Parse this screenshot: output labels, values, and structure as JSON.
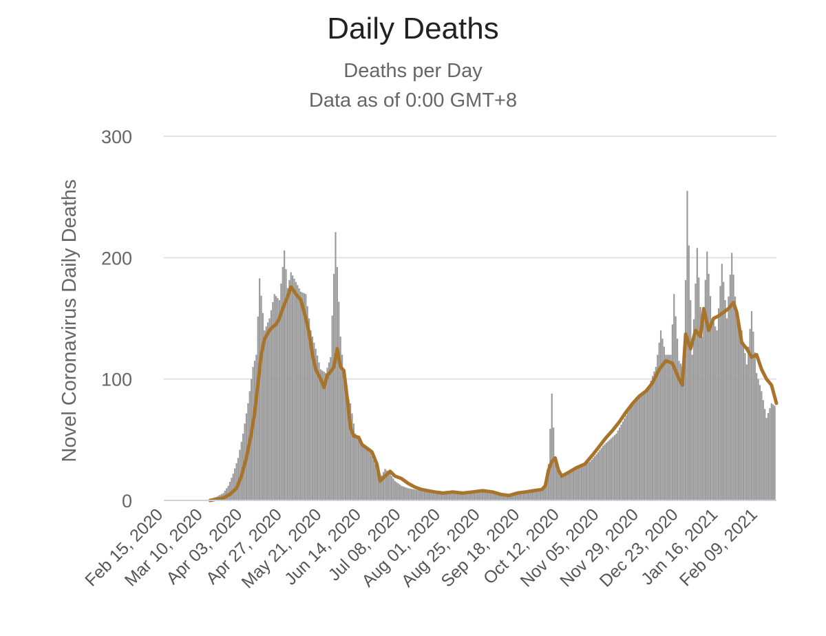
{
  "chart_data": {
    "type": "bar",
    "title": "Daily Deaths",
    "subtitle_lines": [
      "Deaths per Day",
      "Data as of 0:00 GMT+8"
    ],
    "ylabel": "Novel Coronavirus Daily Deaths",
    "xlabel": "",
    "ylim": [
      0,
      300
    ],
    "yticks": [
      0,
      100,
      200,
      300
    ],
    "grid": true,
    "x_start": "2020-02-15",
    "x_end": "2021-02-20",
    "xticks": [
      "Feb 15, 2020",
      "Mar 10, 2020",
      "Apr 03, 2020",
      "Apr 27, 2020",
      "May 21, 2020",
      "Jun 14, 2020",
      "Jul 08, 2020",
      "Aug 01, 2020",
      "Aug 25, 2020",
      "Sep 18, 2020",
      "Oct 12, 2020",
      "Nov 05, 2020",
      "Nov 29, 2020",
      "Dec 23, 2020",
      "Jan 16, 2021",
      "Feb 09, 2021"
    ],
    "series": [
      {
        "type": "bar",
        "color": "#9b9b9b",
        "points": [
          [
            "2020-03-14",
            1
          ],
          [
            "2020-03-18",
            3
          ],
          [
            "2020-03-22",
            6
          ],
          [
            "2020-03-25",
            12
          ],
          [
            "2020-03-28",
            22
          ],
          [
            "2020-03-31",
            35
          ],
          [
            "2020-04-03",
            55
          ],
          [
            "2020-04-06",
            80
          ],
          [
            "2020-04-09",
            110
          ],
          [
            "2020-04-11",
            120
          ],
          [
            "2020-04-13",
            183
          ],
          [
            "2020-04-16",
            140
          ],
          [
            "2020-04-19",
            150
          ],
          [
            "2020-04-22",
            170
          ],
          [
            "2020-04-25",
            165
          ],
          [
            "2020-04-28",
            206
          ],
          [
            "2020-04-30",
            175
          ],
          [
            "2020-05-02",
            188
          ],
          [
            "2020-05-05",
            180
          ],
          [
            "2020-05-08",
            172
          ],
          [
            "2020-05-11",
            170
          ],
          [
            "2020-05-14",
            140
          ],
          [
            "2020-05-17",
            125
          ],
          [
            "2020-05-20",
            108
          ],
          [
            "2020-05-23",
            105
          ],
          [
            "2020-05-26",
            118
          ],
          [
            "2020-05-29",
            221
          ],
          [
            "2020-06-01",
            135
          ],
          [
            "2020-06-04",
            90
          ],
          [
            "2020-06-07",
            80
          ],
          [
            "2020-06-10",
            55
          ],
          [
            "2020-06-13",
            50
          ],
          [
            "2020-06-16",
            44
          ],
          [
            "2020-06-19",
            40
          ],
          [
            "2020-06-22",
            30
          ],
          [
            "2020-06-25",
            18
          ],
          [
            "2020-06-28",
            26
          ],
          [
            "2020-07-01",
            22
          ],
          [
            "2020-07-04",
            16
          ],
          [
            "2020-07-08",
            12
          ],
          [
            "2020-07-12",
            10
          ],
          [
            "2020-07-16",
            9
          ],
          [
            "2020-07-20",
            8
          ],
          [
            "2020-07-25",
            7
          ],
          [
            "2020-07-30",
            8
          ],
          [
            "2020-08-05",
            6
          ],
          [
            "2020-08-10",
            7
          ],
          [
            "2020-08-15",
            6
          ],
          [
            "2020-08-20",
            8
          ],
          [
            "2020-08-25",
            7
          ],
          [
            "2020-08-30",
            6
          ],
          [
            "2020-09-04",
            5
          ],
          [
            "2020-09-09",
            4
          ],
          [
            "2020-09-14",
            5
          ],
          [
            "2020-09-19",
            6
          ],
          [
            "2020-09-24",
            7
          ],
          [
            "2020-09-29",
            8
          ],
          [
            "2020-10-03",
            12
          ],
          [
            "2020-10-05",
            30
          ],
          [
            "2020-10-07",
            88
          ],
          [
            "2020-10-09",
            32
          ],
          [
            "2020-10-12",
            20
          ],
          [
            "2020-10-16",
            22
          ],
          [
            "2020-10-20",
            26
          ],
          [
            "2020-10-25",
            28
          ],
          [
            "2020-10-30",
            32
          ],
          [
            "2020-11-03",
            38
          ],
          [
            "2020-11-07",
            45
          ],
          [
            "2020-11-11",
            50
          ],
          [
            "2020-11-15",
            55
          ],
          [
            "2020-11-19",
            65
          ],
          [
            "2020-11-23",
            75
          ],
          [
            "2020-11-27",
            85
          ],
          [
            "2020-12-01",
            88
          ],
          [
            "2020-12-05",
            95
          ],
          [
            "2020-12-09",
            110
          ],
          [
            "2020-12-12",
            140
          ],
          [
            "2020-12-15",
            120
          ],
          [
            "2020-12-18",
            120
          ],
          [
            "2020-12-20",
            170
          ],
          [
            "2020-12-23",
            115
          ],
          [
            "2020-12-26",
            108
          ],
          [
            "2020-12-28",
            255
          ],
          [
            "2020-12-31",
            120
          ],
          [
            "2021-01-03",
            208
          ],
          [
            "2021-01-06",
            135
          ],
          [
            "2021-01-09",
            205
          ],
          [
            "2021-01-12",
            150
          ],
          [
            "2021-01-15",
            140
          ],
          [
            "2021-01-18",
            195
          ],
          [
            "2021-01-21",
            150
          ],
          [
            "2021-01-24",
            204
          ],
          [
            "2021-01-27",
            150
          ],
          [
            "2021-01-30",
            140
          ],
          [
            "2021-02-02",
            112
          ],
          [
            "2021-02-05",
            156
          ],
          [
            "2021-02-08",
            105
          ],
          [
            "2021-02-11",
            90
          ],
          [
            "2021-02-14",
            68
          ],
          [
            "2021-02-17",
            80
          ],
          [
            "2021-02-19",
            78
          ]
        ]
      },
      {
        "type": "line",
        "color": "#a8742b",
        "points": [
          [
            "2020-03-14",
            0
          ],
          [
            "2020-03-18",
            1
          ],
          [
            "2020-03-22",
            2
          ],
          [
            "2020-03-26",
            5
          ],
          [
            "2020-03-30",
            10
          ],
          [
            "2020-04-02",
            20
          ],
          [
            "2020-04-05",
            35
          ],
          [
            "2020-04-08",
            55
          ],
          [
            "2020-04-10",
            72
          ],
          [
            "2020-04-12",
            96
          ],
          [
            "2020-04-14",
            120
          ],
          [
            "2020-04-16",
            133
          ],
          [
            "2020-04-19",
            140
          ],
          [
            "2020-04-21",
            143
          ],
          [
            "2020-04-23",
            145
          ],
          [
            "2020-04-25",
            150
          ],
          [
            "2020-04-27",
            158
          ],
          [
            "2020-04-30",
            168
          ],
          [
            "2020-05-02",
            176
          ],
          [
            "2020-05-05",
            170
          ],
          [
            "2020-05-08",
            165
          ],
          [
            "2020-05-11",
            150
          ],
          [
            "2020-05-13",
            138
          ],
          [
            "2020-05-15",
            120
          ],
          [
            "2020-05-17",
            108
          ],
          [
            "2020-05-20",
            100
          ],
          [
            "2020-05-22",
            93
          ],
          [
            "2020-05-24",
            103
          ],
          [
            "2020-05-26",
            106
          ],
          [
            "2020-05-28",
            110
          ],
          [
            "2020-05-30",
            125
          ],
          [
            "2020-06-01",
            110
          ],
          [
            "2020-06-03",
            107
          ],
          [
            "2020-06-05",
            85
          ],
          [
            "2020-06-07",
            60
          ],
          [
            "2020-06-09",
            53
          ],
          [
            "2020-06-12",
            52
          ],
          [
            "2020-06-14",
            46
          ],
          [
            "2020-06-17",
            43
          ],
          [
            "2020-06-20",
            40
          ],
          [
            "2020-06-23",
            30
          ],
          [
            "2020-06-25",
            16
          ],
          [
            "2020-06-28",
            20
          ],
          [
            "2020-07-01",
            24
          ],
          [
            "2020-07-04",
            20
          ],
          [
            "2020-07-08",
            18
          ],
          [
            "2020-07-12",
            14
          ],
          [
            "2020-07-16",
            11
          ],
          [
            "2020-07-20",
            9
          ],
          [
            "2020-07-24",
            8
          ],
          [
            "2020-07-28",
            7
          ],
          [
            "2020-08-02",
            6
          ],
          [
            "2020-08-08",
            7
          ],
          [
            "2020-08-14",
            6
          ],
          [
            "2020-08-20",
            7
          ],
          [
            "2020-08-26",
            8
          ],
          [
            "2020-09-01",
            7
          ],
          [
            "2020-09-06",
            5
          ],
          [
            "2020-09-11",
            4
          ],
          [
            "2020-09-16",
            6
          ],
          [
            "2020-09-21",
            7
          ],
          [
            "2020-09-26",
            8
          ],
          [
            "2020-10-01",
            9
          ],
          [
            "2020-10-03",
            12
          ],
          [
            "2020-10-05",
            25
          ],
          [
            "2020-10-07",
            32
          ],
          [
            "2020-10-09",
            35
          ],
          [
            "2020-10-11",
            25
          ],
          [
            "2020-10-13",
            20
          ],
          [
            "2020-10-17",
            23
          ],
          [
            "2020-10-22",
            27
          ],
          [
            "2020-10-27",
            30
          ],
          [
            "2020-11-01",
            38
          ],
          [
            "2020-11-05",
            45
          ],
          [
            "2020-11-09",
            52
          ],
          [
            "2020-11-13",
            58
          ],
          [
            "2020-11-17",
            65
          ],
          [
            "2020-11-21",
            73
          ],
          [
            "2020-11-25",
            80
          ],
          [
            "2020-11-29",
            86
          ],
          [
            "2020-12-03",
            90
          ],
          [
            "2020-12-07",
            97
          ],
          [
            "2020-12-11",
            108
          ],
          [
            "2020-12-15",
            115
          ],
          [
            "2020-12-19",
            113
          ],
          [
            "2020-12-23",
            100
          ],
          [
            "2020-12-25",
            95
          ],
          [
            "2020-12-27",
            137
          ],
          [
            "2020-12-30",
            125
          ],
          [
            "2021-01-02",
            140
          ],
          [
            "2021-01-05",
            135
          ],
          [
            "2021-01-07",
            158
          ],
          [
            "2021-01-10",
            140
          ],
          [
            "2021-01-13",
            150
          ],
          [
            "2021-01-16",
            152
          ],
          [
            "2021-01-19",
            155
          ],
          [
            "2021-01-22",
            158
          ],
          [
            "2021-01-25",
            163
          ],
          [
            "2021-01-27",
            155
          ],
          [
            "2021-01-30",
            130
          ],
          [
            "2021-02-02",
            125
          ],
          [
            "2021-02-05",
            118
          ],
          [
            "2021-02-08",
            120
          ],
          [
            "2021-02-11",
            108
          ],
          [
            "2021-02-14",
            100
          ],
          [
            "2021-02-17",
            95
          ],
          [
            "2021-02-20",
            80
          ]
        ]
      }
    ]
  }
}
